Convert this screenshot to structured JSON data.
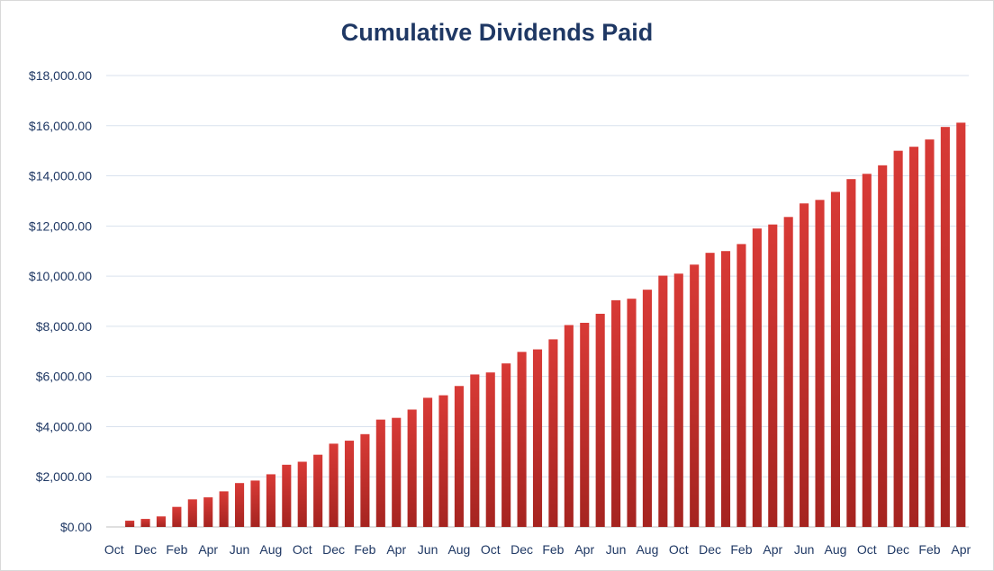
{
  "chart_data": {
    "type": "bar",
    "title": "Cumulative Dividends Paid",
    "xlabel": "",
    "ylabel": "",
    "ylim": [
      0,
      18000
    ],
    "y_ticks": [
      0,
      2000,
      4000,
      6000,
      8000,
      10000,
      12000,
      14000,
      16000,
      18000
    ],
    "y_tick_labels": [
      "$0.00",
      "$2,000.00",
      "$4,000.00",
      "$6,000.00",
      "$8,000.00",
      "$10,000.00",
      "$12,000.00",
      "$14,000.00",
      "$16,000.00",
      "$18,000.00"
    ],
    "grid": true,
    "legend": "none",
    "bar_color": "#c8302e",
    "categories": [
      "Oct",
      "Nov",
      "Dec",
      "Jan",
      "Feb",
      "Mar",
      "Apr",
      "May",
      "Jun",
      "Jul",
      "Aug",
      "Sep",
      "Oct",
      "Nov",
      "Dec",
      "Jan",
      "Feb",
      "Mar",
      "Apr",
      "May",
      "Jun",
      "Jul",
      "Aug",
      "Sep",
      "Oct",
      "Nov",
      "Dec",
      "Jan",
      "Feb",
      "Mar",
      "Apr",
      "May",
      "Jun",
      "Jul",
      "Aug",
      "Sep",
      "Oct",
      "Nov",
      "Dec",
      "Jan",
      "Feb",
      "Mar",
      "Apr",
      "May",
      "Jun",
      "Jul",
      "Aug",
      "Sep",
      "Oct",
      "Nov",
      "Dec",
      "Jan",
      "Feb",
      "Mar",
      "Apr"
    ],
    "x_tick_labels_shown_every": 2,
    "values": [
      0,
      250,
      320,
      420,
      800,
      1100,
      1180,
      1420,
      1750,
      1850,
      2100,
      2480,
      2600,
      2880,
      3320,
      3440,
      3700,
      4280,
      4350,
      4680,
      5150,
      5250,
      5620,
      6080,
      6160,
      6520,
      6980,
      7080,
      7480,
      8050,
      8140,
      8500,
      9040,
      9100,
      9460,
      10020,
      10100,
      10460,
      10930,
      11000,
      11280,
      11900,
      12060,
      12360,
      12900,
      13040,
      13360,
      13870,
      14080,
      14420,
      15000,
      15160,
      15450,
      15950,
      16120
    ]
  }
}
